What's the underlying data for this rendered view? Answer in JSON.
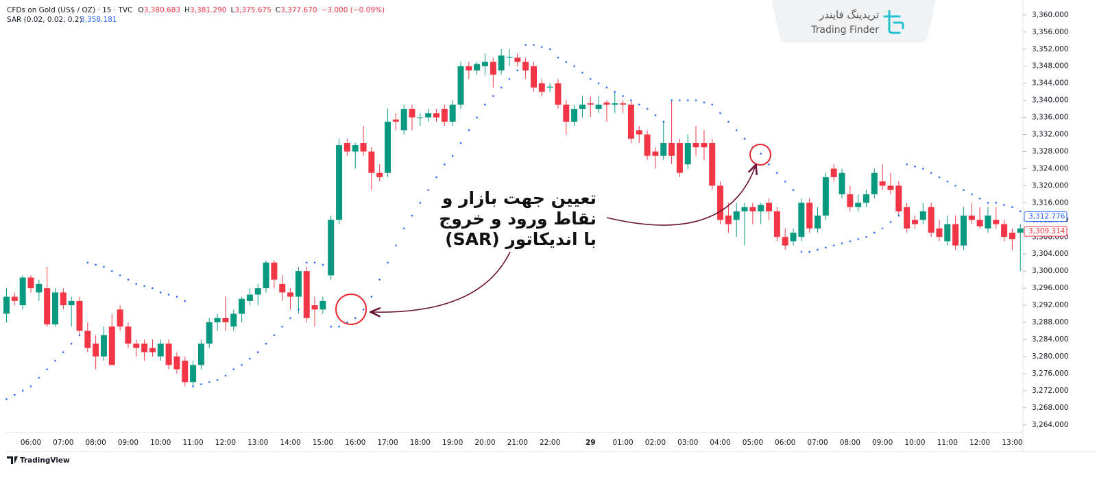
{
  "header": {
    "symbol": "CFDs on Gold (US$ / OZ) · 15 · TVC",
    "quote": [
      {
        "key": "O",
        "value": "3,380.683"
      },
      {
        "key": "H",
        "value": "3,381.290"
      },
      {
        "key": "L",
        "value": "3,375.675"
      },
      {
        "key": "C",
        "value": "3,377.670"
      }
    ],
    "change": "−3.000 (−0.09%)",
    "indicator": "SAR (0.02, 0.02, 0.2)",
    "indicator_value": "3,358.181"
  },
  "logo": {
    "persian": "تریدینگ فایندر",
    "latin": "Trading Finder"
  },
  "annotation": [
    "تعیین جهت بازار و",
    "نقاط ورود و خروج",
    "با اندیکاتور (SAR)"
  ],
  "footer": "TradingView",
  "chart_data": {
    "type": "candlestick",
    "up_color": "#089981",
    "down_color": "#f23645",
    "categories": [
      null,
      null,
      null,
      "06:00",
      null,
      null,
      null,
      "07:00",
      null,
      null,
      null,
      "08:00",
      null,
      null,
      null,
      "09:00",
      null,
      null,
      null,
      "10:00",
      null,
      null,
      null,
      "11:00",
      null,
      null,
      null,
      "12:00",
      null,
      null,
      null,
      "13:00",
      null,
      null,
      null,
      "14:00",
      null,
      null,
      null,
      "15:00",
      null,
      null,
      null,
      "16:00",
      null,
      null,
      null,
      "17:00",
      null,
      null,
      null,
      "18:00",
      null,
      null,
      null,
      "19:00",
      null,
      null,
      null,
      "20:00",
      null,
      null,
      null,
      "21:00",
      null,
      null,
      null,
      "22:00",
      null,
      null,
      null,
      null,
      "29",
      null,
      null,
      null,
      "01:00",
      null,
      null,
      null,
      "02:00",
      null,
      null,
      null,
      "03:00",
      null,
      null,
      null,
      "04:00",
      null,
      null,
      null,
      "05:00",
      null,
      null,
      null,
      "06:00",
      null,
      null,
      null,
      "07:00",
      null,
      null,
      null,
      "08:00",
      null,
      null,
      null,
      "09:00",
      null,
      null,
      null,
      "10:00",
      null,
      null,
      null,
      "11:00",
      null,
      null,
      null,
      "12:00",
      null,
      null,
      null,
      "13:00",
      null
    ],
    "ohlc": [
      [
        3290,
        3296,
        3288,
        3294
      ],
      [
        3294,
        3295,
        3292,
        3293
      ],
      [
        3292,
        3299,
        3291,
        3298.5
      ],
      [
        3298.5,
        3299,
        3295,
        3296
      ],
      [
        3295,
        3298,
        3293,
        3297
      ],
      [
        3296,
        3301,
        3287,
        3287.5
      ],
      [
        3287.5,
        3296,
        3287,
        3295
      ],
      [
        3295,
        3296,
        3291,
        3292
      ],
      [
        3292,
        3294,
        3287,
        3293
      ],
      [
        3293,
        3294,
        3285,
        3286
      ],
      [
        3286,
        3288,
        3281,
        3282
      ],
      [
        3283,
        3285,
        3277,
        3280
      ],
      [
        3280,
        3287,
        3279,
        3285
      ],
      [
        3287,
        3290,
        3278,
        3278
      ],
      [
        3291,
        3292,
        3286,
        3287
      ],
      [
        3287,
        3288,
        3282,
        3283
      ],
      [
        3283,
        3284,
        3280,
        3282
      ],
      [
        3283,
        3284,
        3279,
        3281
      ],
      [
        3282,
        3284,
        3280,
        3281
      ],
      [
        3280,
        3284,
        3279,
        3283
      ],
      [
        3283,
        3284,
        3277,
        3278
      ],
      [
        3280,
        3281,
        3276,
        3277
      ],
      [
        3279,
        3280,
        3273,
        3274
      ],
      [
        3274,
        3279,
        3273,
        3278
      ],
      [
        3278,
        3284,
        3277,
        3283
      ],
      [
        3283,
        3289,
        3282,
        3288
      ],
      [
        3288,
        3290,
        3286,
        3289
      ],
      [
        3289,
        3294,
        3286,
        3288
      ],
      [
        3287,
        3291,
        3286,
        3290
      ],
      [
        3290,
        3294,
        3288,
        3293.5
      ],
      [
        3293,
        3296,
        3292,
        3294.5
      ],
      [
        3294.5,
        3297,
        3292,
        3296
      ],
      [
        3296,
        3302.5,
        3295,
        3302
      ],
      [
        3302,
        3302.5,
        3296,
        3298
      ],
      [
        3297,
        3299,
        3293,
        3295
      ],
      [
        3295,
        3296,
        3291,
        3294
      ],
      [
        3294,
        3301,
        3290,
        3300
      ],
      [
        3300,
        3301,
        3288,
        3289
      ],
      [
        3292,
        3294,
        3287,
        3291
      ],
      [
        3291,
        3294,
        3290,
        3293
      ],
      [
        3299,
        3313,
        3298,
        3312
      ],
      [
        3312,
        3331,
        3311,
        3329.5
      ],
      [
        3330,
        3331,
        3327,
        3328
      ],
      [
        3328,
        3330,
        3324,
        3329.5
      ],
      [
        3330,
        3334,
        3327,
        3328
      ],
      [
        3328,
        3329,
        3319,
        3323
      ],
      [
        3323,
        3325,
        3321,
        3322
      ],
      [
        3323,
        3338,
        3322,
        3335
      ],
      [
        3335.5,
        3337,
        3333,
        3335
      ],
      [
        3333,
        3339,
        3332,
        3338
      ],
      [
        3338,
        3339,
        3333,
        3336
      ],
      [
        3336,
        3337,
        3334,
        3336
      ],
      [
        3336,
        3338,
        3335,
        3337
      ],
      [
        3337,
        3338,
        3335,
        3336
      ],
      [
        3338,
        3339,
        3334,
        3335
      ],
      [
        3335,
        3340,
        3334,
        3339
      ],
      [
        3339,
        3349,
        3338,
        3348
      ],
      [
        3348,
        3349,
        3345,
        3347
      ],
      [
        3347,
        3349,
        3346,
        3348.5
      ],
      [
        3348,
        3351,
        3346,
        3349
      ],
      [
        3349,
        3350,
        3343,
        3346
      ],
      [
        3347,
        3352,
        3346,
        3350.5
      ],
      [
        3350,
        3352,
        3348,
        3350.2
      ],
      [
        3350,
        3351,
        3348,
        3349
      ],
      [
        3349,
        3350,
        3345,
        3347
      ],
      [
        3348,
        3349,
        3342,
        3343
      ],
      [
        3344,
        3345,
        3341,
        3342
      ],
      [
        3343,
        3344,
        3342,
        3343.2
      ],
      [
        3344,
        3345,
        3338,
        3339
      ],
      [
        3339,
        3340,
        3332,
        3335
      ],
      [
        3335,
        3339,
        3334,
        3338
      ],
      [
        3338,
        3341,
        3336,
        3339
      ],
      [
        3339.3,
        3341,
        3336,
        3339
      ],
      [
        3338,
        3341,
        3337,
        3339
      ],
      [
        3339.5,
        3340,
        3335,
        3339
      ],
      [
        3339,
        3342,
        3337,
        3339.3
      ],
      [
        3339.3,
        3340,
        3337,
        3339
      ],
      [
        3339,
        3340,
        3330,
        3331
      ],
      [
        3333,
        3334,
        3330,
        3332
      ],
      [
        3332,
        3333,
        3326,
        3327
      ],
      [
        3328,
        3329,
        3324,
        3327
      ],
      [
        3327,
        3335,
        3326,
        3330
      ],
      [
        3330,
        3340,
        3325,
        3327
      ],
      [
        3330,
        3331,
        3322,
        3323
      ],
      [
        3325,
        3332,
        3324,
        3330
      ],
      [
        3330,
        3334,
        3327,
        3329
      ],
      [
        3330,
        3333,
        3326,
        3329
      ],
      [
        3330,
        3331,
        3319,
        3320
      ],
      [
        3320,
        3321,
        3311,
        3312
      ],
      [
        3313,
        3316,
        3309,
        3311
      ],
      [
        3312,
        3316,
        3308,
        3314
      ],
      [
        3314,
        3316,
        3306,
        3315
      ],
      [
        3315,
        3316,
        3311,
        3314
      ],
      [
        3314,
        3316,
        3311,
        3315.5
      ],
      [
        3316,
        3317,
        3312,
        3314
      ],
      [
        3314,
        3315,
        3307,
        3308
      ],
      [
        3308,
        3310,
        3305,
        3306
      ],
      [
        3307,
        3310,
        3306,
        3309
      ],
      [
        3308,
        3317,
        3307,
        3316
      ],
      [
        3316,
        3317,
        3309,
        3310
      ],
      [
        3310,
        3315,
        3309,
        3313
      ],
      [
        3313,
        3323,
        3312,
        3322
      ],
      [
        3324,
        3325,
        3321,
        3322
      ],
      [
        3318,
        3324,
        3317,
        3323
      ],
      [
        3318,
        3320,
        3314,
        3315
      ],
      [
        3315,
        3318,
        3314,
        3316
      ],
      [
        3316,
        3319,
        3315,
        3318
      ],
      [
        3318,
        3324,
        3317,
        3323
      ],
      [
        3321,
        3325,
        3319,
        3320
      ],
      [
        3320,
        3323,
        3318,
        3319
      ],
      [
        3320,
        3321,
        3313,
        3314
      ],
      [
        3315,
        3316,
        3309,
        3310
      ],
      [
        3312,
        3313,
        3310,
        3311
      ],
      [
        3312,
        3316,
        3311,
        3314
      ],
      [
        3315,
        3316,
        3308,
        3309
      ],
      [
        3310,
        3312,
        3307,
        3308
      ],
      [
        3307,
        3313,
        3306,
        3311
      ],
      [
        3311,
        3313,
        3305,
        3306
      ],
      [
        3306,
        3315,
        3305,
        3313
      ],
      [
        3313,
        3316,
        3311,
        3312
      ],
      [
        3312,
        3315,
        3310,
        3310.5
      ],
      [
        3310,
        3315,
        3309,
        3313
      ],
      [
        3312,
        3315,
        3310,
        3311
      ],
      [
        3311,
        3312,
        3307,
        3308
      ],
      [
        3309,
        3310,
        3305,
        3307.5
      ],
      [
        3309,
        3311,
        3300,
        3310
      ]
    ],
    "sar": {
      "color": "#2962ff",
      "values": [
        3270,
        3271,
        3272,
        3273,
        3275,
        3277,
        3279,
        3281,
        3283,
        3285,
        3302,
        3301.5,
        3301,
        3300,
        3299,
        3298,
        3297,
        3296.5,
        3296,
        3295,
        3294.5,
        3294,
        3293,
        3273,
        3273.5,
        3274,
        3274.5,
        3275.5,
        3277,
        3278,
        3279.5,
        3281,
        3283,
        3285,
        3287,
        3289,
        3291,
        3302,
        3302,
        3301.5,
        3287,
        3287,
        3288,
        3289,
        3291,
        3294,
        3298,
        3302,
        3306,
        3310,
        3313,
        3316,
        3319,
        3322,
        3325,
        3327,
        3330,
        3333,
        3336,
        3339,
        3341,
        3343,
        3345,
        3347,
        3353,
        3353,
        3352.5,
        3352,
        3350,
        3349,
        3348,
        3346.5,
        3345,
        3344,
        3343,
        3342,
        3341,
        3340,
        3339,
        3338,
        3336.5,
        3335,
        3340,
        3340,
        3340,
        3340,
        3339.5,
        3339,
        3337,
        3335,
        3333,
        3331,
        3329,
        3327.5,
        3325,
        3323,
        3321,
        3319,
        3304.5,
        3304.5,
        3305,
        3305.5,
        3306,
        3306.5,
        3307,
        3307.5,
        3308,
        3309,
        3310,
        3311.5,
        3313,
        3325,
        3324.5,
        3324,
        3323,
        3322,
        3321,
        3320,
        3319,
        3318,
        3317,
        3316,
        3316,
        3315.5,
        3315,
        3314
      ]
    },
    "ylim": [
      3262.2,
      3362.7
    ],
    "yticks": [
      {
        "value": 3264,
        "label": "3,264.000"
      },
      {
        "value": 3268,
        "label": "3,268.000"
      },
      {
        "value": 3272,
        "label": "3,272.000"
      },
      {
        "value": 3276,
        "label": "3,276.000"
      },
      {
        "value": 3280,
        "label": "3,280.000"
      },
      {
        "value": 3284,
        "label": "3,284.000"
      },
      {
        "value": 3288,
        "label": "3,288.000"
      },
      {
        "value": 3292,
        "label": "3,292.000"
      },
      {
        "value": 3296,
        "label": "3,296.000"
      },
      {
        "value": 3300,
        "label": "3,300.000"
      },
      {
        "value": 3304,
        "label": "3,304.000"
      },
      {
        "value": 3308,
        "label": "3,308.000"
      },
      {
        "value": 3312,
        "label": "3,312.000"
      },
      {
        "value": 3316,
        "label": "3,316.000"
      },
      {
        "value": 3320,
        "label": "3,320.000"
      },
      {
        "value": 3324,
        "label": "3,324.000"
      },
      {
        "value": 3328,
        "label": "3,328.000"
      },
      {
        "value": 3332,
        "label": "3,332.000"
      },
      {
        "value": 3336,
        "label": "3,336.000"
      },
      {
        "value": 3340,
        "label": "3,340.000"
      },
      {
        "value": 3344,
        "label": "3,344.000"
      },
      {
        "value": 3348,
        "label": "3,348.000"
      },
      {
        "value": 3352,
        "label": "3,352.000"
      },
      {
        "value": 3356,
        "label": "3,356.000"
      },
      {
        "value": 3360,
        "label": "3,360.000"
      }
    ],
    "price_labels": [
      {
        "value": 3312.776,
        "label": "3,312.776",
        "color": "#2962ff"
      },
      {
        "value": 3309.314,
        "label": "3,309.314",
        "color": "#f23645"
      }
    ]
  }
}
